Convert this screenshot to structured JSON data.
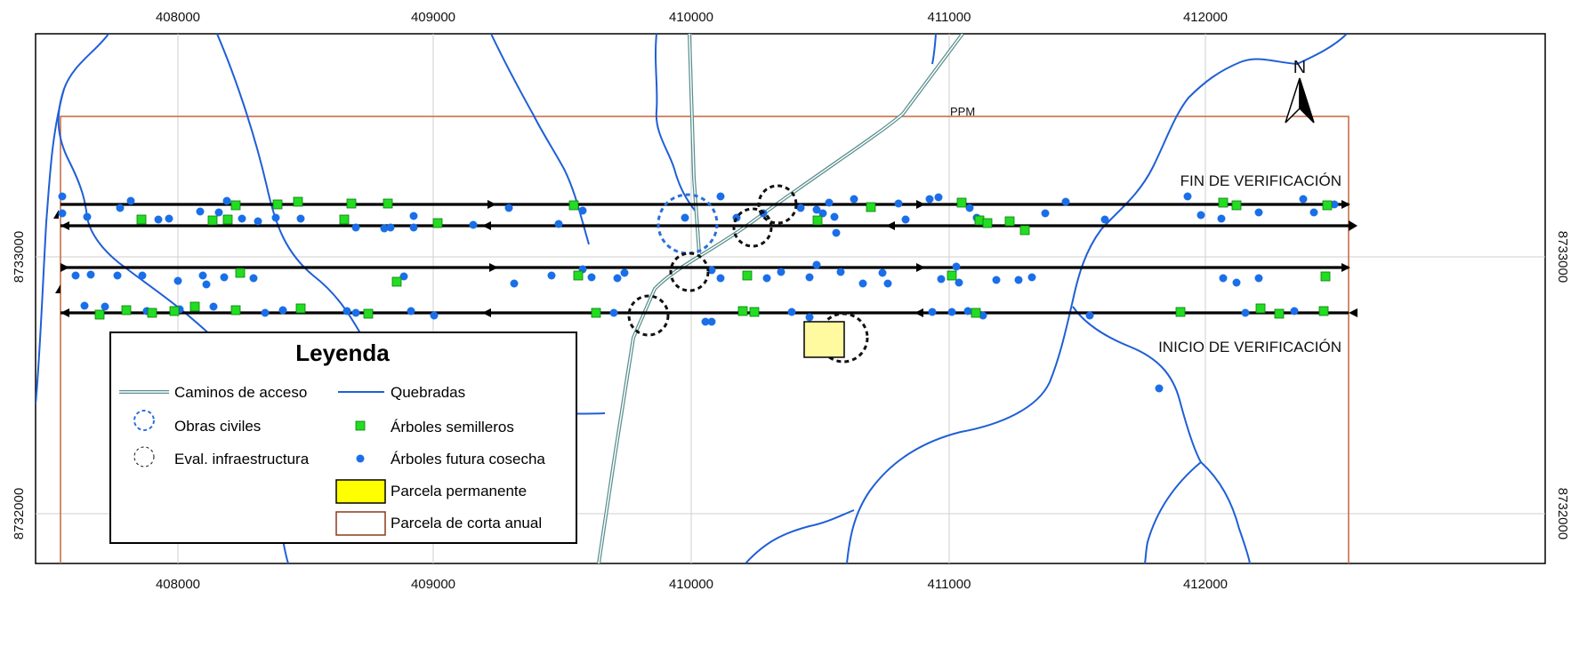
{
  "axes": {
    "x_ticks": [
      "408000",
      "409000",
      "410000",
      "411000",
      "412000"
    ],
    "y_ticks": [
      "8733000",
      "8732000"
    ]
  },
  "labels": {
    "ppm": "PPM",
    "north": "N",
    "fin": "FIN DE VERIFICACIÓN",
    "inicio": "INICIO DE VERIFICACIÓN"
  },
  "legend": {
    "title": "Leyenda",
    "items": {
      "caminos": "Caminos de acceso",
      "quebradas": "Quebradas",
      "obras": "Obras civiles",
      "semilleros": "Árboles semilleros",
      "eval": "Eval. infraestructura",
      "futura": "Árboles futura cosecha",
      "permanente": "Parcela permanente",
      "corta": "Parcela de corta anual"
    }
  },
  "colors": {
    "stream": "#1f5fd6",
    "road": "#5a8f8f",
    "parcel_border": "#c8704a",
    "semillero": "#22dd22",
    "futura": "#1a6fe8",
    "permanente": "#ffff66",
    "obras_circle": "#2a6fdc",
    "eval_circle": "#111111",
    "grid": "#cfcfcf"
  },
  "map_features": {
    "transects": 4,
    "obras_civiles_count": 1,
    "eval_infraestructura_count": 6,
    "parcela_permanente_count": 1
  }
}
